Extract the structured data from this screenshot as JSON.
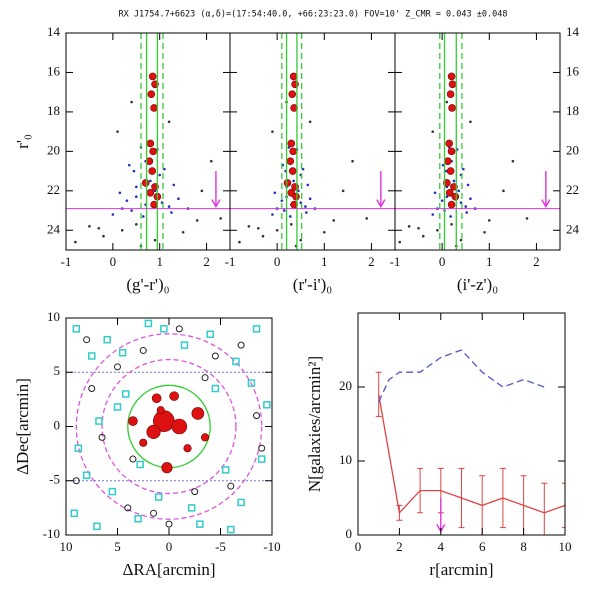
{
  "figure_title": "RX J1754.7+6623 (α,δ)=(17:54:40.0, +66:23:23.0) FOV=10' Z_CMR = 0.043 ±0.048",
  "chart_data": [
    {
      "type": "scatter",
      "xlabel": "(g'-r')₀",
      "ylabel": "r'₀",
      "xlim": [
        -1,
        2.5
      ],
      "ylim": [
        25,
        14
      ],
      "xticks": [
        -1,
        0,
        1,
        2
      ],
      "yticks": [
        14,
        16,
        18,
        20,
        22,
        24
      ],
      "ytick_labels": [
        "left"
      ],
      "vlines": [
        {
          "x": 0.6,
          "style": "dashed"
        },
        {
          "x": 0.72,
          "style": "solid"
        },
        {
          "x": 0.95,
          "style": "solid"
        },
        {
          "x": 1.07,
          "style": "dashed"
        }
      ],
      "vline_color": "#33cc33",
      "hline": 22.9,
      "hline_color": "#dd33dd",
      "arrow": {
        "x": 2.2,
        "from": 21.0,
        "to": 22.8
      },
      "series": [
        {
          "color": "#333333",
          "marker": "dot",
          "x": [
            -0.5,
            0.2,
            1.8,
            2.1,
            -0.2,
            0.5,
            1.5,
            0.9,
            2.3,
            -0.8,
            1.2,
            0.1,
            0.6,
            1.9,
            -0.3,
            0.4
          ],
          "values": [
            23.8,
            24.0,
            23.5,
            20.5,
            24.3,
            23.7,
            24.1,
            24.5,
            23.4,
            24.6,
            18.5,
            19.0,
            24.8,
            22.0,
            23.9,
            17.5
          ]
        },
        {
          "color": "#1f2fbf",
          "marker": "dot",
          "x": [
            0.3,
            0.5,
            0.7,
            1.0,
            1.2,
            0.4,
            0.9,
            1.4,
            0.6,
            0.2,
            1.1,
            0.8,
            0.5,
            1.3,
            0.0,
            0.7,
            1.6,
            0.45,
            0.95,
            1.25,
            0.15,
            0.65,
            1.05,
            0.35
          ],
          "values": [
            22.5,
            21.8,
            20.5,
            21.2,
            22.8,
            23.0,
            22.0,
            22.4,
            19.8,
            22.9,
            20.9,
            21.5,
            22.3,
            21.7,
            23.2,
            22.7,
            22.9,
            21.0,
            19.9,
            23.1,
            22.1,
            23.3,
            22.6,
            20.7
          ]
        },
        {
          "color": "#dd1111",
          "marker": "filled",
          "x": [
            0.85,
            0.9,
            0.82,
            0.88,
            0.8,
            0.86,
            0.78,
            0.84,
            0.7,
            0.9,
            0.8,
            0.95,
            0.88
          ],
          "values": [
            16.2,
            16.6,
            17.1,
            17.8,
            19.6,
            20.0,
            20.5,
            21.0,
            21.6,
            21.8,
            22.1,
            22.3,
            22.7
          ]
        }
      ]
    },
    {
      "type": "scatter",
      "xlabel": "(r'-i')₀",
      "xlim": [
        -1,
        2.5
      ],
      "ylim": [
        25,
        14
      ],
      "xticks": [
        -1,
        0,
        1,
        2
      ],
      "yticks": [
        14,
        16,
        18,
        20,
        22,
        24
      ],
      "ytick_labels": [],
      "vlines": [
        {
          "x": 0.1,
          "style": "dashed"
        },
        {
          "x": 0.2,
          "style": "solid"
        },
        {
          "x": 0.42,
          "style": "solid"
        },
        {
          "x": 0.52,
          "style": "dashed"
        }
      ],
      "vline_color": "#33cc33",
      "hline": 22.9,
      "hline_color": "#dd33dd",
      "arrow": {
        "x": 2.2,
        "from": 21.0,
        "to": 22.8
      },
      "series": [
        {
          "color": "#333333",
          "marker": "dot",
          "x": [
            -0.6,
            0.0,
            1.2,
            1.6,
            -0.3,
            0.3,
            1.0,
            0.5,
            1.9,
            -0.8,
            0.7,
            -0.1,
            0.4,
            1.4,
            -0.4,
            0.2
          ],
          "values": [
            23.8,
            24.0,
            23.5,
            20.5,
            24.3,
            23.7,
            24.1,
            24.5,
            23.4,
            24.6,
            18.5,
            19.0,
            24.8,
            22.0,
            23.9,
            17.5
          ]
        },
        {
          "color": "#1f2fbf",
          "marker": "dot",
          "x": [
            0.1,
            0.2,
            0.3,
            0.5,
            0.6,
            0.15,
            0.45,
            0.7,
            0.25,
            0.0,
            0.55,
            0.35,
            0.2,
            0.65,
            -0.1,
            0.3,
            0.8,
            0.18,
            0.42,
            0.62,
            -0.05,
            0.28,
            0.5,
            0.12
          ],
          "values": [
            22.5,
            21.8,
            20.5,
            21.2,
            22.8,
            23.0,
            22.0,
            22.4,
            19.8,
            22.9,
            20.9,
            21.5,
            22.3,
            21.7,
            23.2,
            22.7,
            22.9,
            21.0,
            19.9,
            23.1,
            22.1,
            23.3,
            22.6,
            20.7
          ]
        },
        {
          "color": "#dd1111",
          "marker": "filled",
          "x": [
            0.35,
            0.38,
            0.32,
            0.36,
            0.3,
            0.34,
            0.28,
            0.33,
            0.22,
            0.38,
            0.3,
            0.4,
            0.36
          ],
          "values": [
            16.2,
            16.6,
            17.1,
            17.8,
            19.6,
            20.0,
            20.5,
            21.0,
            21.6,
            21.8,
            22.1,
            22.3,
            22.7
          ]
        }
      ]
    },
    {
      "type": "scatter",
      "xlabel": "(i'-z')₀",
      "xlim": [
        -1,
        2.5
      ],
      "ylim": [
        25,
        14
      ],
      "xticks": [
        -1,
        0,
        1,
        2
      ],
      "yticks": [
        14,
        16,
        18,
        20,
        22,
        24
      ],
      "ytick_labels": [
        "right"
      ],
      "vlines": [
        {
          "x": -0.05,
          "style": "dashed"
        },
        {
          "x": 0.05,
          "style": "solid"
        },
        {
          "x": 0.3,
          "style": "solid"
        },
        {
          "x": 0.42,
          "style": "dashed"
        }
      ],
      "vline_color": "#33cc33",
      "hline": 22.9,
      "hline_color": "#dd33dd",
      "arrow": {
        "x": 2.2,
        "from": 21.0,
        "to": 22.8
      },
      "series": [
        {
          "color": "#333333",
          "marker": "dot",
          "x": [
            -0.7,
            -0.1,
            1.0,
            1.5,
            -0.4,
            0.2,
            0.9,
            0.4,
            1.8,
            -0.9,
            0.6,
            -0.2,
            0.3,
            1.3,
            -0.5,
            0.1
          ],
          "values": [
            23.8,
            24.0,
            23.5,
            20.5,
            24.3,
            23.7,
            24.1,
            24.5,
            23.4,
            24.6,
            18.5,
            19.0,
            24.8,
            22.0,
            23.9,
            17.5
          ]
        },
        {
          "color": "#1f2fbf",
          "marker": "dot",
          "x": [
            0.0,
            0.1,
            0.2,
            0.4,
            0.5,
            0.05,
            0.35,
            0.6,
            0.15,
            -0.1,
            0.45,
            0.25,
            0.1,
            0.55,
            -0.2,
            0.2,
            0.7,
            0.08,
            0.32,
            0.52,
            -0.15,
            0.18,
            0.4,
            0.02
          ],
          "values": [
            22.5,
            21.8,
            20.5,
            21.2,
            22.8,
            23.0,
            22.0,
            22.4,
            19.8,
            22.9,
            20.9,
            21.5,
            22.3,
            21.7,
            23.2,
            22.7,
            22.9,
            21.0,
            19.9,
            23.1,
            22.1,
            23.3,
            22.6,
            20.7
          ]
        },
        {
          "color": "#dd1111",
          "marker": "filled",
          "x": [
            0.2,
            0.22,
            0.18,
            0.21,
            0.15,
            0.2,
            0.12,
            0.18,
            0.1,
            0.25,
            0.16,
            0.28,
            0.2
          ],
          "values": [
            16.2,
            16.6,
            17.1,
            17.8,
            19.6,
            20.0,
            20.5,
            21.0,
            21.6,
            21.8,
            22.1,
            22.3,
            22.7
          ]
        }
      ]
    },
    {
      "type": "scatter",
      "xlabel": "ΔRA[arcmin]",
      "ylabel": "ΔDec[arcmin]",
      "xlim": [
        10,
        -10
      ],
      "ylim": [
        -10,
        10
      ],
      "xticks": [
        10,
        5,
        0,
        -5,
        -10
      ],
      "yticks": [
        -10,
        -5,
        0,
        5,
        10
      ],
      "ytick_labels": [
        "left"
      ],
      "hlines": [
        5,
        -5
      ],
      "hline_color": "#7777cc",
      "circles": [
        {
          "r": 4,
          "color": "#33cc33",
          "style": "solid"
        },
        {
          "r": 6.5,
          "color": "#dd55dd",
          "style": "dashed"
        },
        {
          "r": 9,
          "color": "#dd55dd",
          "style": "dashed"
        }
      ],
      "series": [
        {
          "color": "#33cccc",
          "marker": "square",
          "x": [
            9,
            7.5,
            6,
            4.2,
            8.8,
            2,
            -1.5,
            -4,
            -6.5,
            -8.5,
            -9.5,
            5.5,
            3,
            -3,
            -7,
            9.2,
            1,
            -5.5,
            6.8,
            -2.2,
            8,
            -8,
            4.5,
            -6,
            0.5,
            -9,
            2.8,
            7,
            -4.5,
            5
          ],
          "values": [
            9,
            6.5,
            8,
            3,
            -2,
            9.5,
            7.5,
            8.5,
            6,
            9,
            2,
            -6,
            -8.5,
            -9,
            -7,
            -8,
            -6.5,
            -4,
            0.5,
            -7.5,
            -4.5,
            4,
            6.8,
            -9.5,
            9,
            -3,
            -3.5,
            -9.2,
            3.5,
            1.8
          ]
        },
        {
          "color": "#222222",
          "marker": "ring",
          "x": [
            8,
            5,
            2.5,
            -1,
            -4.5,
            -7,
            6.5,
            3.5,
            -2.5,
            -6,
            9,
            1.5,
            -8.5,
            4,
            -3.5,
            7.5,
            -9,
            0
          ],
          "values": [
            8,
            5.5,
            7,
            9,
            6.5,
            7.5,
            -1,
            -3,
            -6,
            -5.5,
            -5,
            -8,
            1,
            -7.5,
            4.5,
            3.5,
            -2,
            -9
          ]
        },
        {
          "color": "#dd1111",
          "marker": "filled",
          "x": [
            0.5,
            -1,
            1.5,
            -2.8,
            0.2,
            3.5,
            1.2,
            -0.5,
            2.5,
            -3.5,
            -1.8,
            0.8
          ],
          "values": [
            0.5,
            0,
            -0.5,
            1.2,
            -3.8,
            0.5,
            2.6,
            2.8,
            -1.5,
            -1,
            -2,
            1.5
          ],
          "sizes": [
            12,
            8,
            7,
            6,
            5,
            4,
            4,
            4,
            3,
            3,
            3,
            3
          ]
        }
      ]
    },
    {
      "type": "line",
      "xlabel": "r[arcmin]",
      "ylabel": "N[galaxies/arcmin²]",
      "xlim": [
        0,
        10
      ],
      "ylim": [
        0,
        30
      ],
      "xticks": [
        0,
        2,
        4,
        6,
        8,
        10
      ],
      "yticks": [
        0,
        10,
        20
      ],
      "ytick_labels": [
        "left"
      ],
      "arrow": {
        "x": 4,
        "from": 5,
        "to": 0.5
      },
      "arrow_color": "#dd33dd",
      "series": [
        {
          "color": "#dd4444",
          "style": "solid",
          "x": [
            1,
            2,
            3,
            4,
            5,
            6,
            7,
            8,
            9,
            10
          ],
          "values": [
            19,
            3,
            6,
            6,
            5,
            4,
            5,
            4,
            3,
            4
          ],
          "errors": [
            3,
            1,
            3,
            3,
            4,
            4,
            4,
            4,
            4,
            3
          ]
        },
        {
          "color": "#5555cc",
          "style": "dashed",
          "x": [
            1,
            1.5,
            2,
            3,
            4,
            5,
            6,
            7,
            8,
            9
          ],
          "values": [
            18,
            21,
            22,
            22,
            24,
            25,
            22,
            20,
            21,
            20
          ]
        }
      ]
    }
  ]
}
